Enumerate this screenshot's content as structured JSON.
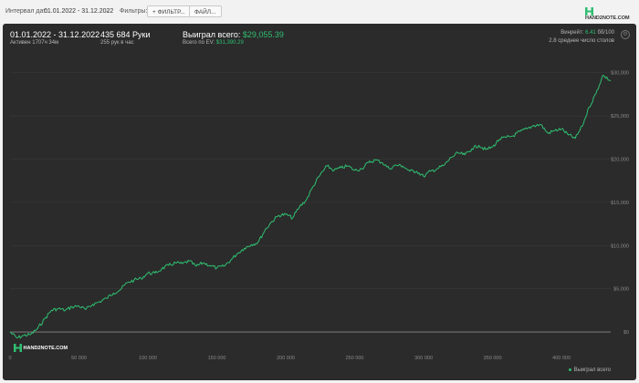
{
  "topbar": {
    "interval_label": "Интервал дат:",
    "date_range": "01.01.2022 - 31.12.2022",
    "filters_label": "Фильтры:",
    "filter_button": "+ ФИЛЬТР...",
    "file_button": "ФАЙЛ...",
    "brand": "HAND2NOTE.COM"
  },
  "panel": {
    "date_range": "01.01.2022 - 31.12.2022",
    "active": "Активен 1707ч 34м",
    "hands": "435 684 Руки",
    "hands_per_hour": "255 рук в час",
    "won_label": "Выиграл всего:",
    "won_value": "$29,055.39",
    "ev_label": "Всего по EV:",
    "ev_value": "$31,390.29",
    "winrate_label": "Винрейт:",
    "winrate_value": "6.41",
    "winrate_unit": "бб/100",
    "tables": "2.8 среднее число столов",
    "watermark": "HAND2NOTE.COM",
    "legend": "Выиграл всего"
  },
  "colors": {
    "line": "#2fbf71",
    "bg": "#2b2b2b",
    "grid": "#3d3d3d"
  },
  "chart_data": {
    "type": "line",
    "title": "",
    "xlabel": "",
    "ylabel": "",
    "x_ticks": [
      "0",
      "50 000",
      "100 000",
      "150 000",
      "200 000",
      "250 000",
      "300 000",
      "350 000",
      "400 000"
    ],
    "y_ticks": [
      "$0",
      "$5,000",
      "$10,000",
      "$15,000",
      "$20,000",
      "$25,000",
      "$30,000"
    ],
    "xlim": [
      0,
      435684
    ],
    "ylim": [
      -2000,
      30500
    ],
    "series": [
      {
        "name": "Выиграл всего",
        "x": [
          0,
          5000,
          10000,
          15000,
          20000,
          25000,
          30000,
          35000,
          40000,
          45000,
          50000,
          55000,
          60000,
          65000,
          70000,
          75000,
          80000,
          85000,
          90000,
          95000,
          100000,
          105000,
          110000,
          115000,
          120000,
          125000,
          130000,
          135000,
          140000,
          145000,
          150000,
          155000,
          160000,
          165000,
          170000,
          175000,
          180000,
          185000,
          190000,
          195000,
          200000,
          205000,
          210000,
          215000,
          220000,
          225000,
          230000,
          235000,
          240000,
          245000,
          250000,
          255000,
          260000,
          265000,
          270000,
          275000,
          280000,
          285000,
          290000,
          295000,
          300000,
          305000,
          310000,
          315000,
          320000,
          325000,
          330000,
          335000,
          340000,
          345000,
          350000,
          355000,
          360000,
          365000,
          370000,
          375000,
          380000,
          385000,
          390000,
          395000,
          400000,
          405000,
          410000,
          415000,
          420000,
          425000,
          430000,
          435684
        ],
        "values": [
          0,
          -700,
          -400,
          -300,
          400,
          1500,
          2500,
          2700,
          2500,
          2900,
          3000,
          2600,
          3200,
          3500,
          3900,
          4500,
          4900,
          5700,
          6000,
          6200,
          6800,
          6800,
          7300,
          7700,
          8000,
          7900,
          8200,
          7600,
          8000,
          7700,
          7400,
          7600,
          8300,
          9100,
          9700,
          10100,
          10400,
          11800,
          12800,
          13500,
          13600,
          13200,
          14500,
          15300,
          16900,
          18200,
          19200,
          18700,
          19000,
          19200,
          18700,
          18900,
          19600,
          19900,
          19600,
          18900,
          19300,
          19200,
          18600,
          18600,
          18000,
          18600,
          18900,
          19300,
          20200,
          20700,
          20500,
          21200,
          21600,
          21100,
          21400,
          22300,
          22500,
          22700,
          23200,
          23500,
          23900,
          24000,
          23000,
          23300,
          23500,
          22800,
          22400,
          23800,
          26000,
          27600,
          29700,
          29055
        ]
      }
    ]
  }
}
